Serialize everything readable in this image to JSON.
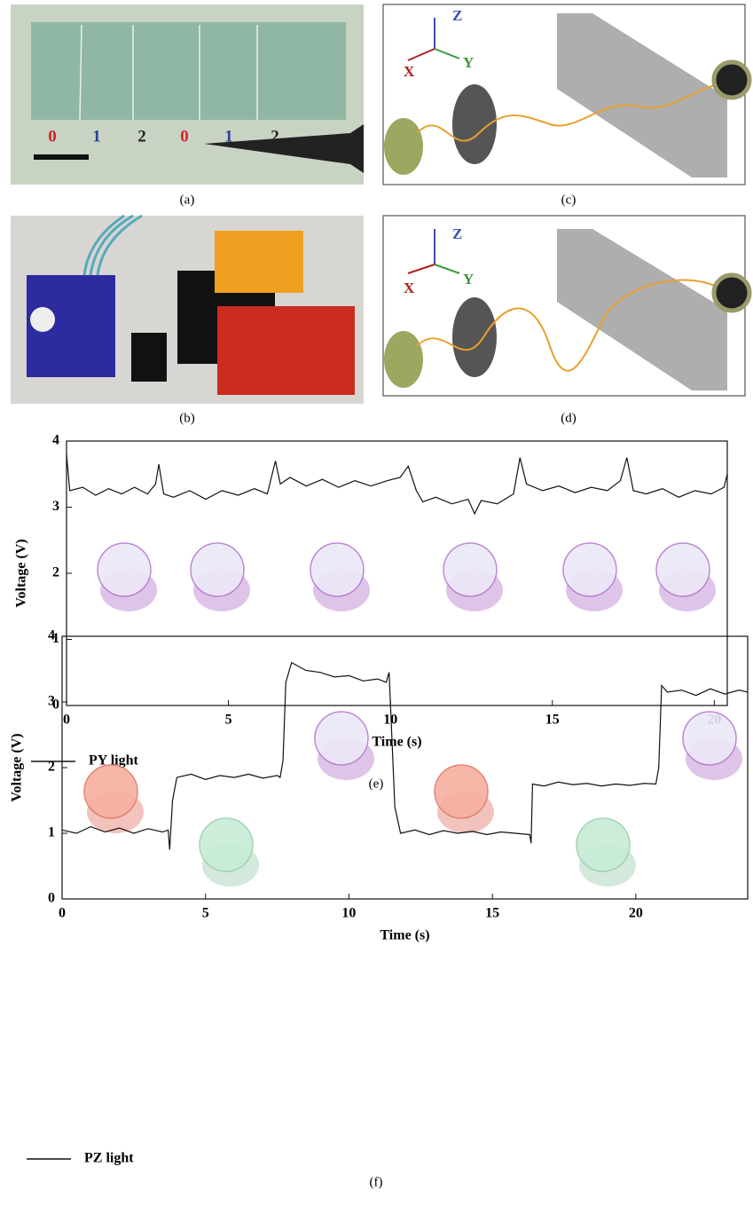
{
  "panels": {
    "a": {
      "caption": "(a)",
      "digits": [
        "0",
        "1",
        "2",
        "0",
        "1",
        "2"
      ]
    },
    "b": {
      "caption": "(b)"
    },
    "c": {
      "caption": "(c)",
      "axes": [
        "Z",
        "X",
        "Y"
      ]
    },
    "d": {
      "caption": "(d)",
      "axes": [
        "Z",
        "X",
        "Y"
      ]
    }
  },
  "chart_data": [
    {
      "type": "line",
      "caption": "(e)",
      "x_label": "Time (s)",
      "y_label": "Voltage (V)",
      "xlim": [
        0,
        20.4
      ],
      "ylim": [
        0,
        4
      ],
      "xticks": [
        0,
        5,
        10,
        15,
        20
      ],
      "yticks": [
        0,
        1,
        2,
        3,
        4
      ],
      "series": [
        {
          "name": "PY light",
          "color": "#111111",
          "x": [
            0,
            0.1,
            0.5,
            0.9,
            1.3,
            1.7,
            2.1,
            2.5,
            2.75,
            2.85,
            3.0,
            3.3,
            3.8,
            4.3,
            4.8,
            5.3,
            5.8,
            6.2,
            6.45,
            6.6,
            6.9,
            7.4,
            7.9,
            8.4,
            8.9,
            9.4,
            9.9,
            10.3,
            10.55,
            10.8,
            11.0,
            11.4,
            11.9,
            12.4,
            12.6,
            12.8,
            13.3,
            13.8,
            14.0,
            14.2,
            14.7,
            15.2,
            15.7,
            16.2,
            16.7,
            17.1,
            17.3,
            17.5,
            17.9,
            18.4,
            18.9,
            19.4,
            19.9,
            20.3,
            20.4
          ],
          "values": [
            3.8,
            3.25,
            3.3,
            3.18,
            3.28,
            3.2,
            3.3,
            3.2,
            3.35,
            3.65,
            3.2,
            3.15,
            3.25,
            3.12,
            3.25,
            3.18,
            3.28,
            3.2,
            3.7,
            3.35,
            3.45,
            3.32,
            3.42,
            3.3,
            3.4,
            3.32,
            3.4,
            3.45,
            3.62,
            3.25,
            3.08,
            3.15,
            3.05,
            3.12,
            2.9,
            3.1,
            3.05,
            3.2,
            3.75,
            3.35,
            3.25,
            3.32,
            3.22,
            3.3,
            3.25,
            3.4,
            3.75,
            3.25,
            3.2,
            3.28,
            3.15,
            3.25,
            3.2,
            3.3,
            3.5
          ]
        }
      ]
    },
    {
      "type": "line",
      "caption": "(f)",
      "x_label": "Time (s)",
      "y_label": "Voltage (V)",
      "xlim": [
        0,
        23.9
      ],
      "ylim": [
        0,
        4
      ],
      "xticks": [
        0,
        5,
        10,
        15,
        20
      ],
      "yticks": [
        0,
        1,
        2,
        3,
        4
      ],
      "series": [
        {
          "name": "PZ light",
          "color": "#111111",
          "x": [
            0,
            0.5,
            1.0,
            1.5,
            2.0,
            2.5,
            3.0,
            3.5,
            3.7,
            3.75,
            3.85,
            4.0,
            4.5,
            5.0,
            5.5,
            6.0,
            6.5,
            7.0,
            7.5,
            7.6,
            7.7,
            7.8,
            8.0,
            8.5,
            9.0,
            9.5,
            10.0,
            10.5,
            11.0,
            11.3,
            11.4,
            11.6,
            11.8,
            12.3,
            12.8,
            13.3,
            13.8,
            14.3,
            14.8,
            15.3,
            15.8,
            16.3,
            16.35,
            16.4,
            16.8,
            17.3,
            17.8,
            18.3,
            18.8,
            19.3,
            19.8,
            20.3,
            20.7,
            20.8,
            20.9,
            21.1,
            21.6,
            22.1,
            22.6,
            23.1,
            23.6,
            23.9
          ],
          "values": [
            1.05,
            1.0,
            1.1,
            1.02,
            1.08,
            1.0,
            1.07,
            1.02,
            1.05,
            0.75,
            1.5,
            1.85,
            1.9,
            1.82,
            1.88,
            1.85,
            1.9,
            1.84,
            1.88,
            1.85,
            2.1,
            3.3,
            3.6,
            3.48,
            3.45,
            3.38,
            3.4,
            3.32,
            3.35,
            3.3,
            3.45,
            1.4,
            1.0,
            1.05,
            0.98,
            1.04,
            1.0,
            1.03,
            0.98,
            1.02,
            1.0,
            0.98,
            0.85,
            1.75,
            1.72,
            1.78,
            1.74,
            1.76,
            1.72,
            1.75,
            1.73,
            1.76,
            1.75,
            2.0,
            3.25,
            3.15,
            3.18,
            3.1,
            3.2,
            3.12,
            3.18,
            3.15
          ]
        }
      ]
    }
  ]
}
